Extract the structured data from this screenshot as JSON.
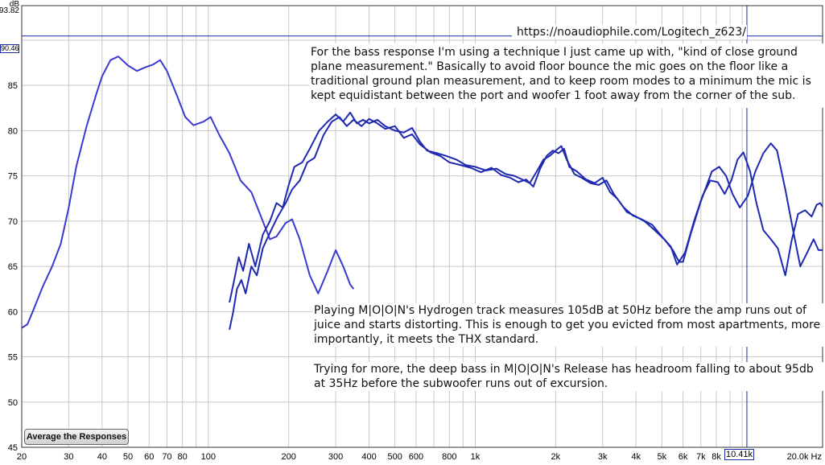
{
  "chart_data": {
    "type": "line",
    "title": "",
    "xlabel": "",
    "ylabel": "dB",
    "x_scale": "log",
    "xlim": [
      20,
      20000
    ],
    "ylim": [
      45,
      93.82
    ],
    "grid": true,
    "legend": "none",
    "x_ticks": [
      {
        "v": 20,
        "label": "20"
      },
      {
        "v": 30,
        "label": "30"
      },
      {
        "v": 40,
        "label": "40"
      },
      {
        "v": 50,
        "label": "50"
      },
      {
        "v": 60,
        "label": "60"
      },
      {
        "v": 70,
        "label": "70"
      },
      {
        "v": 80,
        "label": "80"
      },
      {
        "v": 100,
        "label": "100"
      },
      {
        "v": 200,
        "label": "200"
      },
      {
        "v": 300,
        "label": "300"
      },
      {
        "v": 400,
        "label": "400"
      },
      {
        "v": 500,
        "label": "500"
      },
      {
        "v": 600,
        "label": "600"
      },
      {
        "v": 800,
        "label": "800"
      },
      {
        "v": 1000,
        "label": "1k"
      },
      {
        "v": 2000,
        "label": "2k"
      },
      {
        "v": 3000,
        "label": "3k"
      },
      {
        "v": 4000,
        "label": "4k"
      },
      {
        "v": 5000,
        "label": "5k"
      },
      {
        "v": 6000,
        "label": "6k"
      },
      {
        "v": 7000,
        "label": "7k"
      },
      {
        "v": 8000,
        "label": "8k"
      },
      {
        "v": 20000,
        "label": "20.0k Hz"
      }
    ],
    "y_ticks": [
      45,
      50,
      55,
      60,
      65,
      70,
      75,
      80,
      85
    ],
    "y_top_label": "93.82",
    "y_cursor_label": "90.46",
    "x_cursor_label": "10.41k",
    "series": [
      {
        "color": "#3a3ad0",
        "points": [
          [
            20,
            58.2
          ],
          [
            21,
            58.6
          ],
          [
            22,
            60
          ],
          [
            24,
            62.8
          ],
          [
            26,
            65
          ],
          [
            28,
            67.5
          ],
          [
            30,
            71.5
          ],
          [
            32,
            76
          ],
          [
            35,
            80.5
          ],
          [
            38,
            84
          ],
          [
            40,
            86
          ],
          [
            43,
            87.8
          ],
          [
            46,
            88.2
          ],
          [
            50,
            87.2
          ],
          [
            54,
            86.6
          ],
          [
            58,
            87
          ],
          [
            62,
            87.3
          ],
          [
            66,
            87.8
          ],
          [
            70,
            86.6
          ],
          [
            76,
            84
          ],
          [
            82,
            81.5
          ],
          [
            88,
            80.6
          ],
          [
            96,
            81
          ],
          [
            102,
            81.5
          ],
          [
            110,
            79.5
          ],
          [
            120,
            77.5
          ],
          [
            132,
            74.5
          ],
          [
            145,
            73.2
          ],
          [
            160,
            70
          ],
          [
            170,
            68
          ],
          [
            180,
            68.3
          ],
          [
            195,
            69.8
          ],
          [
            206,
            70.2
          ],
          [
            220,
            68
          ],
          [
            240,
            64
          ],
          [
            258,
            62
          ],
          [
            280,
            64.5
          ],
          [
            300,
            66.8
          ],
          [
            320,
            65
          ],
          [
            340,
            63
          ],
          [
            350,
            62.5
          ]
        ]
      },
      {
        "color": "#1f28b0",
        "points": [
          [
            120,
            61
          ],
          [
            125,
            63.5
          ],
          [
            130,
            66
          ],
          [
            135,
            64.5
          ],
          [
            142,
            67.5
          ],
          [
            150,
            65
          ],
          [
            160,
            68.5
          ],
          [
            170,
            70
          ],
          [
            180,
            72
          ],
          [
            190,
            71.5
          ],
          [
            200,
            74
          ],
          [
            210,
            76
          ],
          [
            225,
            76.5
          ],
          [
            240,
            78
          ],
          [
            260,
            80
          ],
          [
            280,
            81
          ],
          [
            300,
            81.8
          ],
          [
            320,
            81
          ],
          [
            340,
            82
          ],
          [
            360,
            80.8
          ],
          [
            380,
            81.2
          ],
          [
            400,
            80.8
          ],
          [
            430,
            81.2
          ],
          [
            460,
            80.5
          ],
          [
            500,
            80
          ],
          [
            540,
            79.8
          ],
          [
            580,
            80.3
          ],
          [
            620,
            78.8
          ],
          [
            660,
            77.8
          ],
          [
            720,
            77.5
          ],
          [
            780,
            77.2
          ],
          [
            850,
            76.8
          ],
          [
            920,
            76.2
          ],
          [
            1000,
            76
          ],
          [
            1100,
            75.6
          ],
          [
            1200,
            75.8
          ],
          [
            1300,
            75.2
          ],
          [
            1400,
            75
          ],
          [
            1500,
            74.6
          ],
          [
            1600,
            74.2
          ],
          [
            1700,
            75.5
          ],
          [
            1800,
            76.8
          ],
          [
            1900,
            77.2
          ],
          [
            2000,
            77.8
          ],
          [
            2100,
            78.3
          ],
          [
            2200,
            76.8
          ],
          [
            2350,
            75.2
          ],
          [
            2500,
            74.8
          ],
          [
            2700,
            74.2
          ],
          [
            2900,
            74
          ],
          [
            3100,
            74.5
          ],
          [
            3300,
            73
          ],
          [
            3500,
            72
          ],
          [
            3700,
            71
          ],
          [
            4000,
            70.5
          ],
          [
            4300,
            70
          ],
          [
            4700,
            69
          ],
          [
            5100,
            68
          ],
          [
            5500,
            66.8
          ],
          [
            5800,
            65.5
          ],
          [
            6000,
            65.5
          ],
          [
            6400,
            68.5
          ],
          [
            7000,
            72.2
          ],
          [
            7700,
            75.5
          ],
          [
            8200,
            76
          ],
          [
            8700,
            75
          ],
          [
            9200,
            73
          ],
          [
            9800,
            71.5
          ],
          [
            10500,
            72.8
          ],
          [
            11200,
            75.5
          ],
          [
            12000,
            77.5
          ],
          [
            12800,
            78.6
          ],
          [
            13500,
            77.8
          ],
          [
            14500,
            73.5
          ],
          [
            15500,
            69
          ],
          [
            16500,
            65
          ],
          [
            17500,
            66.5
          ],
          [
            18500,
            68
          ],
          [
            19300,
            66.8
          ],
          [
            20000,
            66.8
          ]
        ]
      },
      {
        "color": "#1f28b0",
        "points": [
          [
            120,
            58
          ],
          [
            124,
            60
          ],
          [
            128,
            62.5
          ],
          [
            133,
            63.5
          ],
          [
            138,
            62
          ],
          [
            145,
            65
          ],
          [
            152,
            64
          ],
          [
            160,
            67
          ],
          [
            172,
            69
          ],
          [
            182,
            70.5
          ],
          [
            195,
            72
          ],
          [
            206,
            73.5
          ],
          [
            220,
            74.5
          ],
          [
            235,
            76.5
          ],
          [
            250,
            77
          ],
          [
            270,
            79.5
          ],
          [
            290,
            81
          ],
          [
            310,
            81.5
          ],
          [
            330,
            80.5
          ],
          [
            350,
            81.2
          ],
          [
            375,
            80.5
          ],
          [
            400,
            81.3
          ],
          [
            430,
            80.8
          ],
          [
            460,
            80.2
          ],
          [
            500,
            80.5
          ],
          [
            540,
            79.2
          ],
          [
            580,
            79.6
          ],
          [
            620,
            78.5
          ],
          [
            680,
            77.6
          ],
          [
            740,
            77.2
          ],
          [
            800,
            76.5
          ],
          [
            880,
            76.2
          ],
          [
            960,
            75.9
          ],
          [
            1050,
            75.4
          ],
          [
            1150,
            75.9
          ],
          [
            1250,
            75.1
          ],
          [
            1350,
            74.8
          ],
          [
            1450,
            74.3
          ],
          [
            1550,
            74.6
          ],
          [
            1650,
            73.8
          ],
          [
            1750,
            75.8
          ],
          [
            1850,
            77.2
          ],
          [
            1950,
            77.8
          ],
          [
            2050,
            77.5
          ],
          [
            2150,
            78
          ],
          [
            2250,
            76
          ],
          [
            2400,
            75.5
          ],
          [
            2600,
            74.6
          ],
          [
            2800,
            74.2
          ],
          [
            3000,
            74.8
          ],
          [
            3200,
            73.2
          ],
          [
            3400,
            72.5
          ],
          [
            3600,
            71.5
          ],
          [
            3900,
            70.6
          ],
          [
            4200,
            70.2
          ],
          [
            4600,
            69.6
          ],
          [
            5000,
            68.3
          ],
          [
            5400,
            67.2
          ],
          [
            5700,
            65.2
          ],
          [
            6100,
            66.5
          ],
          [
            6600,
            70
          ],
          [
            7100,
            72.8
          ],
          [
            7600,
            74.5
          ],
          [
            8100,
            74.3
          ],
          [
            8600,
            73
          ],
          [
            9100,
            74.5
          ],
          [
            9600,
            76.8
          ],
          [
            10100,
            77.6
          ],
          [
            10700,
            75.5
          ],
          [
            11300,
            72
          ],
          [
            12000,
            69
          ],
          [
            12800,
            68
          ],
          [
            13600,
            67
          ],
          [
            14500,
            64
          ],
          [
            15300,
            67.8
          ],
          [
            16200,
            70.8
          ],
          [
            17200,
            71.2
          ],
          [
            18200,
            70.5
          ],
          [
            19000,
            71.8
          ],
          [
            19600,
            72
          ],
          [
            20000,
            71.6
          ]
        ]
      }
    ]
  },
  "annotations": {
    "url": "https://noaudiophile.com/Logitech_z623/",
    "bass_note": "For the bass response I'm using a technique I just came up with, \"kind of close ground plane measurement.\" Basically to avoid floor bounce the mic goes on the floor like a traditional ground plan measurement, and to keep room modes to a minimum the mic is kept equidistant between the port and woofer 1 foot away from the corner of the sub.",
    "playing_note": "Playing M|O|O|N's Hydrogen track measures 105dB at 50Hz before the amp runs out of juice and starts distorting. This is enough to get you evicted from most apartments, more importantly, it meets the THX standard.",
    "trying_note": "Trying for more, the deep bass in M|O|O|N's Release has headroom falling to about 95db at 35Hz before the subwoofer runs out of excursion."
  },
  "controls": {
    "average_button_label": "Average the Responses"
  },
  "colors": {
    "grid": "#c8c8c8",
    "axis_border": "#333333",
    "cursor_line": "#1a2aa8"
  }
}
